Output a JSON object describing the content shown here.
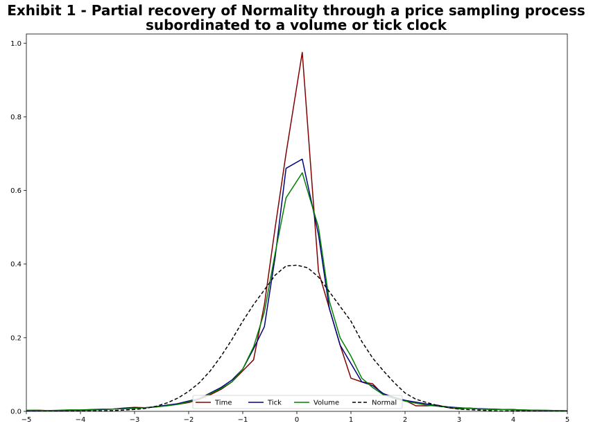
{
  "chart_data": {
    "type": "line",
    "title": "Exhibit 1 - Partial recovery of Normality through a price sampling process\nsubordinated to a volume or tick clock",
    "xlabel": "",
    "ylabel": "",
    "xlim": [
      -5,
      5
    ],
    "ylim": [
      0,
      1.025
    ],
    "x_ticks": [
      -5,
      -4,
      -3,
      -2,
      -1,
      0,
      1,
      2,
      3,
      4,
      5
    ],
    "x_tick_labels": [
      "−5",
      "−4",
      "−3",
      "−2",
      "−1",
      "0",
      "1",
      "2",
      "3",
      "4",
      "5"
    ],
    "y_ticks": [
      0.0,
      0.2,
      0.4,
      0.6,
      0.8,
      1.0
    ],
    "y_tick_labels": [
      "0.0",
      "0.2",
      "0.4",
      "0.6",
      "0.8",
      "1.0"
    ],
    "grid": false,
    "legend": {
      "placement": "bottom-center",
      "columns": 4
    },
    "series": [
      {
        "name": "Time",
        "color": "#800000",
        "dash": "solid",
        "x": [
          -5.0,
          -4.8,
          -4.6,
          -4.4,
          -4.2,
          -4.0,
          -3.8,
          -3.6,
          -3.4,
          -3.2,
          -3.0,
          -2.8,
          -2.6,
          -2.4,
          -2.2,
          -2.0,
          -1.8,
          -1.6,
          -1.4,
          -1.2,
          -1.0,
          -0.8,
          -0.6,
          -0.4,
          -0.2,
          0.1,
          0.4,
          0.6,
          0.8,
          1.0,
          1.2,
          1.4,
          1.6,
          1.8,
          2.0,
          2.2,
          2.4,
          2.6,
          2.8,
          3.0,
          3.2,
          3.4,
          3.6,
          3.8,
          4.0,
          4.2,
          4.4,
          4.6,
          4.8,
          5.0
        ],
        "y": [
          0.002,
          0.003,
          0.002,
          0.002,
          0.003,
          0.003,
          0.004,
          0.005,
          0.006,
          0.009,
          0.011,
          0.01,
          0.012,
          0.016,
          0.019,
          0.024,
          0.033,
          0.045,
          0.06,
          0.08,
          0.11,
          0.14,
          0.29,
          0.5,
          0.7,
          0.975,
          0.38,
          0.28,
          0.18,
          0.09,
          0.08,
          0.075,
          0.045,
          0.035,
          0.03,
          0.015,
          0.015,
          0.017,
          0.01,
          0.007,
          0.009,
          0.006,
          0.006,
          0.005,
          0.005,
          0.003,
          0.003,
          0.002,
          0.002,
          0.001
        ]
      },
      {
        "name": "Tick",
        "color": "#00007f",
        "dash": "solid",
        "x": [
          -5.0,
          -4.8,
          -4.6,
          -4.4,
          -4.2,
          -4.0,
          -3.8,
          -3.6,
          -3.4,
          -3.2,
          -3.0,
          -2.8,
          -2.6,
          -2.4,
          -2.2,
          -2.0,
          -1.8,
          -1.6,
          -1.4,
          -1.2,
          -1.0,
          -0.8,
          -0.6,
          -0.4,
          -0.2,
          0.1,
          0.4,
          0.6,
          0.8,
          1.0,
          1.2,
          1.4,
          1.6,
          1.8,
          2.0,
          2.2,
          2.4,
          2.6,
          2.8,
          3.0,
          3.2,
          3.4,
          3.6,
          3.8,
          4.0,
          4.2,
          4.4,
          4.6,
          4.8,
          5.0
        ],
        "y": [
          0.002,
          0.002,
          0.002,
          0.002,
          0.003,
          0.003,
          0.004,
          0.005,
          0.006,
          0.008,
          0.009,
          0.01,
          0.013,
          0.017,
          0.021,
          0.028,
          0.035,
          0.05,
          0.065,
          0.085,
          0.115,
          0.17,
          0.23,
          0.42,
          0.66,
          0.685,
          0.48,
          0.28,
          0.18,
          0.13,
          0.08,
          0.07,
          0.048,
          0.038,
          0.03,
          0.025,
          0.02,
          0.015,
          0.012,
          0.01,
          0.008,
          0.007,
          0.006,
          0.005,
          0.004,
          0.003,
          0.003,
          0.002,
          0.002,
          0.001
        ]
      },
      {
        "name": "Volume",
        "color": "#008000",
        "dash": "solid",
        "x": [
          -5.0,
          -4.8,
          -4.6,
          -4.4,
          -4.2,
          -4.0,
          -3.8,
          -3.6,
          -3.4,
          -3.2,
          -3.0,
          -2.8,
          -2.6,
          -2.4,
          -2.2,
          -2.0,
          -1.8,
          -1.6,
          -1.4,
          -1.2,
          -1.0,
          -0.8,
          -0.6,
          -0.4,
          -0.2,
          0.1,
          0.4,
          0.6,
          0.8,
          1.0,
          1.2,
          1.4,
          1.6,
          1.8,
          2.0,
          2.2,
          2.4,
          2.6,
          2.8,
          3.0,
          3.2,
          3.4,
          3.6,
          3.8,
          4.0,
          4.2,
          4.4,
          4.6,
          4.8,
          5.0
        ],
        "y": [
          0.003,
          0.003,
          0.002,
          0.003,
          0.004,
          0.004,
          0.005,
          0.006,
          0.006,
          0.007,
          0.008,
          0.01,
          0.012,
          0.015,
          0.019,
          0.026,
          0.035,
          0.048,
          0.062,
          0.08,
          0.115,
          0.175,
          0.27,
          0.43,
          0.58,
          0.648,
          0.5,
          0.3,
          0.2,
          0.15,
          0.09,
          0.065,
          0.045,
          0.035,
          0.028,
          0.022,
          0.017,
          0.014,
          0.011,
          0.009,
          0.008,
          0.006,
          0.005,
          0.005,
          0.004,
          0.004,
          0.003,
          0.003,
          0.002,
          0.002
        ]
      },
      {
        "name": "Normal",
        "color": "#000000",
        "dash": "dashed",
        "x": [
          -5.0,
          -4.6,
          -4.2,
          -3.8,
          -3.4,
          -3.0,
          -2.8,
          -2.6,
          -2.4,
          -2.2,
          -2.0,
          -1.8,
          -1.6,
          -1.4,
          -1.2,
          -1.0,
          -0.8,
          -0.6,
          -0.4,
          -0.2,
          0.0,
          0.2,
          0.4,
          0.6,
          0.8,
          1.0,
          1.2,
          1.4,
          1.6,
          1.8,
          2.0,
          2.2,
          2.4,
          2.6,
          2.8,
          3.0,
          3.4,
          3.8,
          4.2,
          4.6,
          5.0
        ],
        "y": [
          0.0,
          0.0,
          0.001,
          0.001,
          0.002,
          0.005,
          0.008,
          0.014,
          0.023,
          0.036,
          0.054,
          0.078,
          0.11,
          0.15,
          0.195,
          0.245,
          0.29,
          0.33,
          0.37,
          0.395,
          0.397,
          0.39,
          0.365,
          0.325,
          0.285,
          0.245,
          0.19,
          0.145,
          0.11,
          0.078,
          0.05,
          0.033,
          0.024,
          0.016,
          0.01,
          0.006,
          0.003,
          0.001,
          0.001,
          0.0,
          0.0
        ]
      }
    ]
  }
}
